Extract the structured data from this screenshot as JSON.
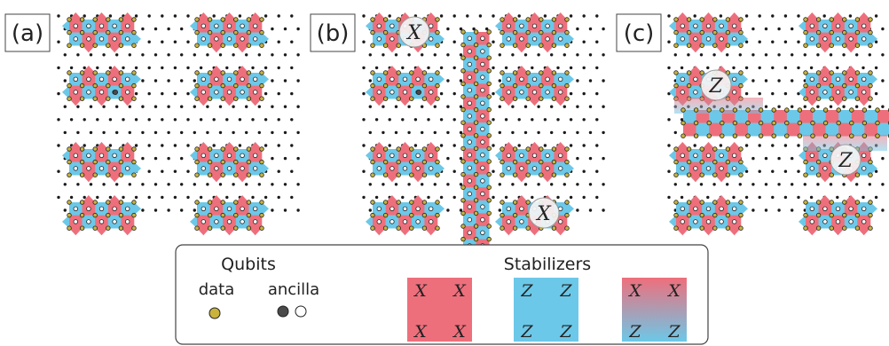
{
  "panels": [
    {
      "label": "(a)",
      "operators": []
    },
    {
      "label": "(b)",
      "operators": [
        {
          "letter": "X"
        },
        {
          "letter": "X"
        }
      ]
    },
    {
      "label": "(c)",
      "operators": [
        {
          "letter": "Z"
        },
        {
          "letter": "Z"
        }
      ]
    }
  ],
  "legend": {
    "qubits_title": "Qubits",
    "data_label": "data",
    "ancilla_label": "ancilla",
    "stabilizers_title": "Stabilizers",
    "x_stabilizer": {
      "top_left": "X",
      "top_right": "X",
      "bottom_left": "X",
      "bottom_right": "X"
    },
    "z_stabilizer": {
      "top_left": "Z",
      "top_right": "Z",
      "bottom_left": "Z",
      "bottom_right": "Z"
    },
    "mixed_stabilizer": {
      "top_left": "X",
      "top_right": "X",
      "bottom_left": "Z",
      "bottom_right": "Z"
    }
  },
  "colors": {
    "x_stabilizer": "#ee6f7c",
    "z_stabilizer": "#6cc8e8",
    "data_qubit": "#c9b33c",
    "ancilla_filled": "#4a4a4a",
    "ancilla_empty": "#ffffff",
    "lattice_dot": "#1a1a1a",
    "panel_border": "#444444"
  }
}
